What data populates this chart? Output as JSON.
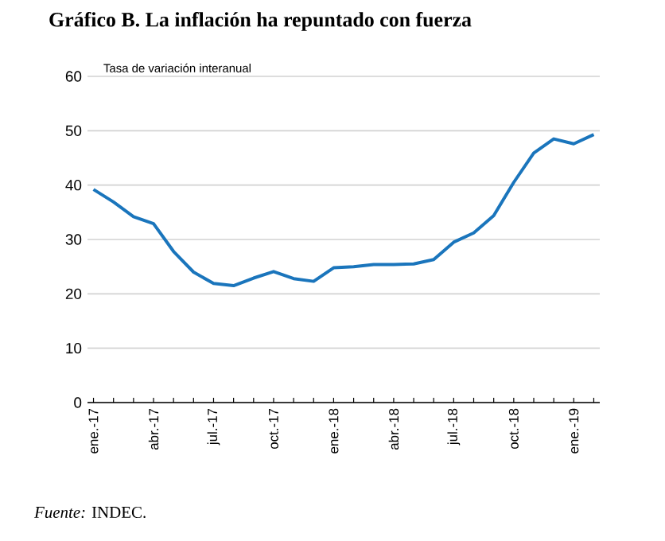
{
  "chart_data": {
    "type": "line",
    "title": "Gráfico B. La inflación ha repuntado con fuerza",
    "ylabel": "Tasa de variación interanual",
    "annotations": [
      "*Fuente:* INDEC."
    ],
    "categories": [
      "ene.-17",
      null,
      null,
      "abr.-17",
      null,
      null,
      "jul.-17",
      null,
      null,
      "oct.-17",
      null,
      null,
      "ene.-18",
      null,
      null,
      "abr.-18",
      null,
      null,
      "jul.-18",
      null,
      null,
      "oct.-18",
      null,
      null,
      "ene.-19",
      null
    ],
    "values": [
      39.2,
      36.9,
      34.2,
      32.9,
      27.8,
      24.0,
      21.9,
      21.5,
      22.9,
      24.1,
      22.8,
      22.3,
      24.8,
      25.0,
      25.4,
      25.4,
      25.5,
      26.3,
      29.5,
      31.2,
      34.4,
      40.5,
      45.9,
      48.5,
      47.6,
      49.3
    ],
    "color": "#1a75bc",
    "ylim": [
      0,
      60
    ],
    "yticks": [
      0,
      10,
      20,
      30,
      40,
      50,
      60
    ],
    "grid": "y"
  }
}
